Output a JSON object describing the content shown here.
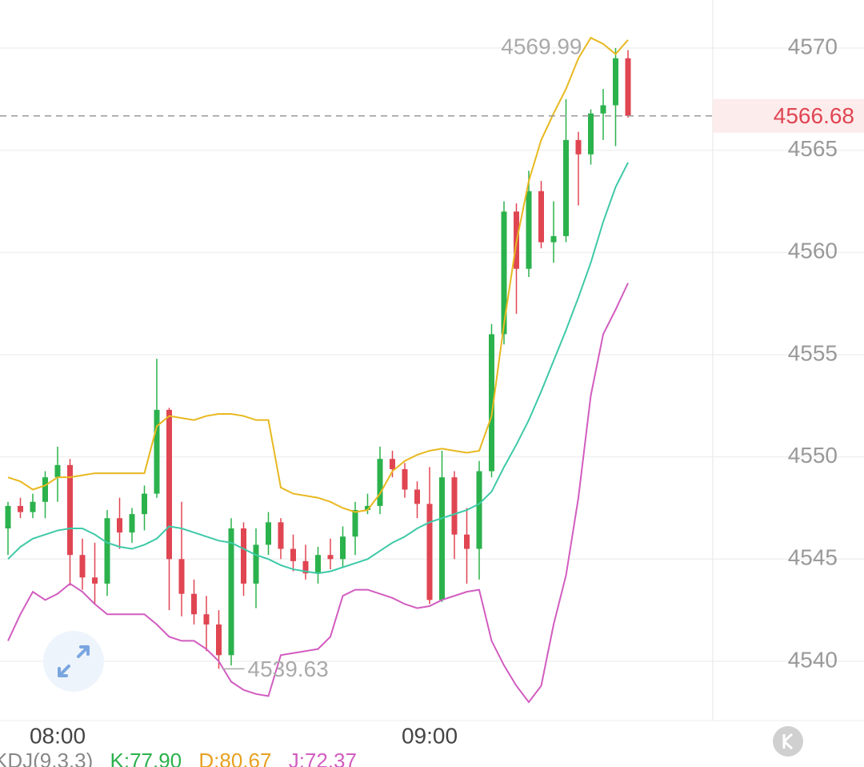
{
  "chart_data": {
    "type": "candlestick",
    "categories": [
      null,
      null,
      null,
      null,
      "08:00",
      null,
      null,
      null,
      null,
      null,
      null,
      null,
      null,
      null,
      null,
      null,
      null,
      null,
      null,
      null,
      null,
      null,
      null,
      null,
      null,
      null,
      null,
      null,
      null,
      null,
      null,
      null,
      null,
      null,
      "09:00",
      null,
      null,
      null,
      null,
      null,
      null,
      null,
      null,
      null,
      null,
      null,
      null,
      null,
      null,
      null,
      null
    ],
    "open": [
      4546.5,
      4547.6,
      4547.3,
      4547.8,
      4549.0,
      4549.6,
      4545.2,
      4544.1,
      4543.8,
      4547.0,
      4546.3,
      4547.2,
      4548.2,
      4552.3,
      4545.0,
      4543.3,
      4542.3,
      4541.8,
      4540.3,
      4546.5,
      4543.8,
      4545.7,
      4546.8,
      4545.5,
      4544.9,
      4544.3,
      4545.2,
      4545.0,
      4546.1,
      4547.4,
      4547.6,
      4549.9,
      4549.4,
      4548.4,
      4547.7,
      4543.0,
      4549.0,
      4546.2,
      4545.5,
      4549.3,
      4556.0,
      4562.0,
      4559.2,
      4563.0,
      4560.5,
      4560.8,
      4565.5,
      4564.8,
      4566.8,
      4567.2,
      4569.5
    ],
    "high": [
      4547.8,
      4548.0,
      4548.2,
      4549.3,
      4550.5,
      4549.9,
      4546.0,
      4545.8,
      4547.4,
      4548.0,
      4547.5,
      4548.6,
      4554.8,
      4552.4,
      4547.8,
      4544.0,
      4543.2,
      4542.5,
      4547.0,
      4546.8,
      4546.5,
      4547.3,
      4547.0,
      4546.2,
      4545.7,
      4545.6,
      4546.0,
      4546.6,
      4547.8,
      4548.2,
      4550.5,
      4550.3,
      4549.7,
      4548.8,
      4549.5,
      4550.3,
      4549.3,
      4547.5,
      4549.8,
      4556.5,
      4562.5,
      4562.4,
      4564.0,
      4563.5,
      4562.5,
      4567.5,
      4565.9,
      4567.0,
      4568.0,
      4570.0,
      4569.9
    ],
    "low": [
      4545.2,
      4547.0,
      4547.0,
      4547.0,
      4547.8,
      4543.7,
      4543.5,
      4542.8,
      4543.2,
      4545.5,
      4545.8,
      4546.4,
      4548.0,
      4542.5,
      4542.2,
      4541.8,
      4540.5,
      4539.63,
      4539.8,
      4543.2,
      4542.6,
      4545.2,
      4545.0,
      4544.4,
      4544.0,
      4543.8,
      4544.5,
      4544.6,
      4545.2,
      4547.2,
      4547.2,
      4549.0,
      4548.0,
      4547.0,
      4542.8,
      4542.9,
      4545.0,
      4543.8,
      4544.0,
      4549.0,
      4555.5,
      4557.0,
      4558.8,
      4560.2,
      4559.5,
      4560.5,
      4562.3,
      4564.3,
      4565.5,
      4565.2,
      4566.6
    ],
    "close": [
      4547.6,
      4547.3,
      4547.8,
      4549.0,
      4549.6,
      4545.2,
      4544.1,
      4543.8,
      4547.0,
      4546.3,
      4547.2,
      4548.2,
      4552.3,
      4545.0,
      4543.3,
      4542.3,
      4541.8,
      4540.3,
      4546.5,
      4543.8,
      4545.7,
      4546.8,
      4545.5,
      4544.9,
      4544.3,
      4545.2,
      4545.0,
      4546.1,
      4547.4,
      4547.6,
      4549.9,
      4549.4,
      4548.4,
      4547.7,
      4543.0,
      4549.0,
      4546.2,
      4545.5,
      4549.3,
      4556.0,
      4562.0,
      4559.2,
      4563.0,
      4560.5,
      4560.8,
      4565.5,
      4564.8,
      4566.8,
      4567.2,
      4569.5,
      4566.68
    ],
    "up_color": "#2bb24c",
    "down_color": "#e04552",
    "overlays": [
      {
        "color": "#e8b820",
        "values": [
          4549.0,
          4548.8,
          4548.4,
          4548.6,
          4549.0,
          4549.0,
          4549.1,
          4549.2,
          4549.2,
          4549.2,
          4549.2,
          4549.2,
          4551.5,
          4552.0,
          4551.9,
          4551.8,
          4552.0,
          4552.1,
          4552.1,
          4552.0,
          4551.8,
          4551.8,
          4548.5,
          4548.2,
          4548.1,
          4548.0,
          4547.8,
          4547.5,
          4547.3,
          4547.4,
          4548.2,
          4549.3,
          4549.8,
          4550.1,
          4550.3,
          4550.4,
          4550.3,
          4550.2,
          4550.3,
          4552.0,
          4556.5,
          4560.5,
          4563.5,
          4565.5,
          4566.8,
          4568.0,
          4569.5,
          4570.5,
          4570.2,
          4569.7,
          4570.4
        ]
      },
      {
        "color": "#3ec9a7",
        "values": [
          4545.0,
          4545.6,
          4546.0,
          4546.2,
          4546.4,
          4546.5,
          4546.5,
          4546.2,
          4545.8,
          4545.6,
          4545.5,
          4545.7,
          4546.0,
          4546.6,
          4546.5,
          4546.3,
          4546.1,
          4545.9,
          4545.8,
          4545.5,
          4545.2,
          4545.0,
          4544.7,
          4544.5,
          4544.4,
          4544.3,
          4544.4,
          4544.6,
          4544.8,
          4545.0,
          4545.4,
          4545.8,
          4546.1,
          4546.5,
          4546.8,
          4547.0,
          4547.2,
          4547.4,
          4547.7,
          4548.3,
          4549.5,
          4550.6,
          4551.8,
          4553.2,
          4554.7,
          4556.2,
          4557.8,
          4559.5,
          4561.5,
          4563.2,
          4564.4
        ]
      },
      {
        "color": "#d25cc0",
        "values": [
          4541.0,
          4542.3,
          4543.4,
          4543.0,
          4543.3,
          4543.8,
          4543.4,
          4542.8,
          4542.3,
          4542.3,
          4542.3,
          4542.3,
          4541.8,
          4541.2,
          4541.0,
          4541.0,
          4540.6,
          4540.0,
          4539.0,
          4538.6,
          4538.4,
          4538.3,
          4540.3,
          4540.4,
          4540.5,
          4540.6,
          4541.2,
          4543.2,
          4543.5,
          4543.5,
          4543.3,
          4543.1,
          4542.8,
          4542.6,
          4542.7,
          4543.0,
          4543.2,
          4543.4,
          4543.5,
          4541.0,
          4539.8,
          4538.8,
          4538.0,
          4538.8,
          4541.8,
          4544.2,
          4548.0,
          4553.0,
          4556.0,
          4557.2,
          4558.5
        ]
      }
    ],
    "max_label": 4569.99,
    "min_label": 4539.63,
    "last_price": 4566.68,
    "ylim": [
      4537.1,
      4572.35
    ],
    "yticks": [
      4540,
      4545,
      4550,
      4555,
      4560,
      4565,
      4570
    ],
    "grid": true,
    "indicator": {
      "name": "KDJ(9,3,3)",
      "k": "K:77.90",
      "d": "D:80.67",
      "j": "J:72.37"
    }
  }
}
